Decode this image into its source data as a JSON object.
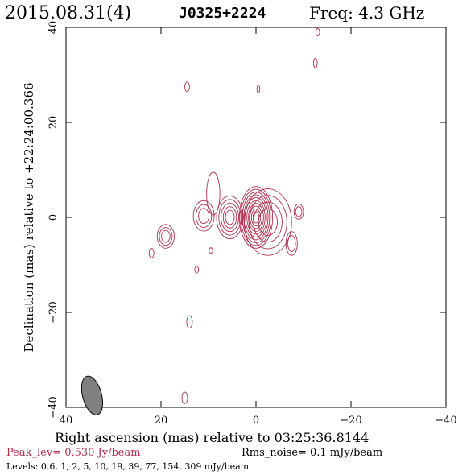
{
  "header": {
    "date": "2015.08.31(4)",
    "source": "J0325+2224",
    "freq": "Freq: 4.3 GHz"
  },
  "footer": {
    "peak": "Peak_lev=  0.530 Jy/beam",
    "rms": "Rms_noise=  0.1 mJy/beam",
    "levels": "Levels: 0.6,   1,   2,   5,  10,  19,  39,  77, 154, 309 mJy/beam"
  },
  "colors": {
    "contour": "#b03050",
    "beam": "#808080",
    "accent": "#b03050"
  },
  "chart_data": {
    "type": "contour",
    "title": "J0325+2224",
    "xlabel": "Right ascension (mas) relative to 03:25:36.8144",
    "ylabel": "Declination (mas) relative to +22:24:00.366",
    "xlim": [
      40,
      -40
    ],
    "ylim": [
      -40,
      40
    ],
    "xticks": [
      40,
      20,
      0,
      -20,
      -40
    ],
    "yticks": [
      40,
      20,
      0,
      -20,
      -40
    ],
    "xtick_labels": [
      "40",
      "20",
      "0",
      "−20",
      "−40"
    ],
    "ytick_labels": [
      "40",
      "20",
      "0",
      "−20",
      "−40"
    ],
    "grid": false,
    "contour_levels_mJy": [
      0.6,
      1,
      2,
      5,
      10,
      19,
      39,
      77,
      154,
      309
    ],
    "beam": {
      "x": 34.5,
      "y": -37.5,
      "major": 4.2,
      "minor": 2.0,
      "pa_deg": -15
    },
    "components": [
      {
        "name": "core",
        "x": 0,
        "y": 0,
        "rx": 3.5,
        "ry": 6.5,
        "n": 10
      },
      {
        "name": "inner-jet",
        "x": -2.5,
        "y": -1,
        "rx": 5,
        "ry": 7,
        "n": 4
      },
      {
        "name": "knot-1",
        "x": 5.5,
        "y": 0,
        "rx": 2.8,
        "ry": 4.5,
        "n": 5
      },
      {
        "name": "knot-2",
        "x": 11,
        "y": 0.3,
        "rx": 2.2,
        "ry": 3.2,
        "n": 3
      },
      {
        "name": "knot-3",
        "x": 19,
        "y": -4,
        "rx": 1.8,
        "ry": 2.5,
        "n": 3
      },
      {
        "name": "east-extension",
        "x": 9,
        "y": 5,
        "rx": 1.4,
        "ry": 4.5,
        "n": 1
      },
      {
        "name": "west-blob",
        "x": -9,
        "y": 1.2,
        "rx": 1,
        "ry": 1.6,
        "n": 2
      },
      {
        "name": "south-jet",
        "x": -7.5,
        "y": -5.5,
        "rx": 1.2,
        "ry": 2.5,
        "n": 2
      },
      {
        "name": "noise",
        "x": 22,
        "y": -7.5,
        "rx": 0.5,
        "ry": 1,
        "n": 1
      },
      {
        "name": "noise",
        "x": 9.5,
        "y": -7,
        "rx": 0.4,
        "ry": 0.6,
        "n": 1
      },
      {
        "name": "noise",
        "x": 12.5,
        "y": -11,
        "rx": 0.4,
        "ry": 0.7,
        "n": 1
      },
      {
        "name": "noise",
        "x": 14,
        "y": -22,
        "rx": 0.6,
        "ry": 1.3,
        "n": 1
      },
      {
        "name": "noise",
        "x": 14.5,
        "y": 27.5,
        "rx": 0.5,
        "ry": 1,
        "n": 1
      },
      {
        "name": "noise",
        "x": -0.5,
        "y": 27,
        "rx": 0.3,
        "ry": 0.8,
        "n": 1
      },
      {
        "name": "noise",
        "x": -12.5,
        "y": 32.5,
        "rx": 0.4,
        "ry": 1,
        "n": 1
      },
      {
        "name": "noise",
        "x": -13,
        "y": 39,
        "rx": 0.4,
        "ry": 0.8,
        "n": 1
      },
      {
        "name": "noise",
        "x": 15,
        "y": -38,
        "rx": 0.6,
        "ry": 1.2,
        "n": 1
      }
    ]
  }
}
